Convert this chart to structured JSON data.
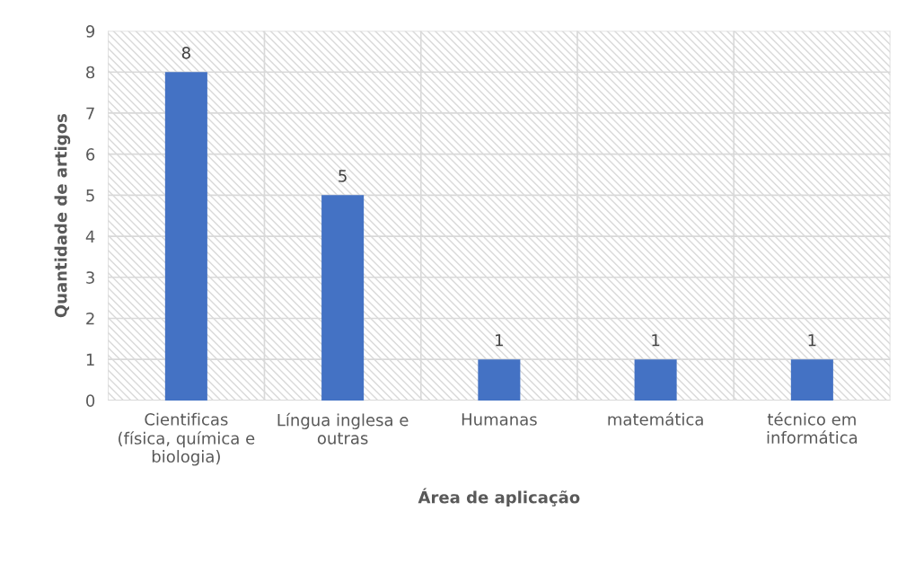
{
  "chart_data": {
    "type": "bar",
    "categories": [
      "Cientificas\n(física, química e\nbiologia)",
      "Língua inglesa e\noutras",
      "Humanas",
      "matemática",
      "técnico em\ninformática"
    ],
    "values": [
      8,
      5,
      1,
      1,
      1
    ],
    "color": "#4472c4",
    "xlabel": "Área de aplicação",
    "ylabel": "Quantidade de artigos",
    "ylim": [
      0,
      9
    ],
    "yticks": [
      0,
      1,
      2,
      3,
      4,
      5,
      6,
      7,
      8,
      9
    ],
    "grid": true,
    "data_labels": true
  }
}
